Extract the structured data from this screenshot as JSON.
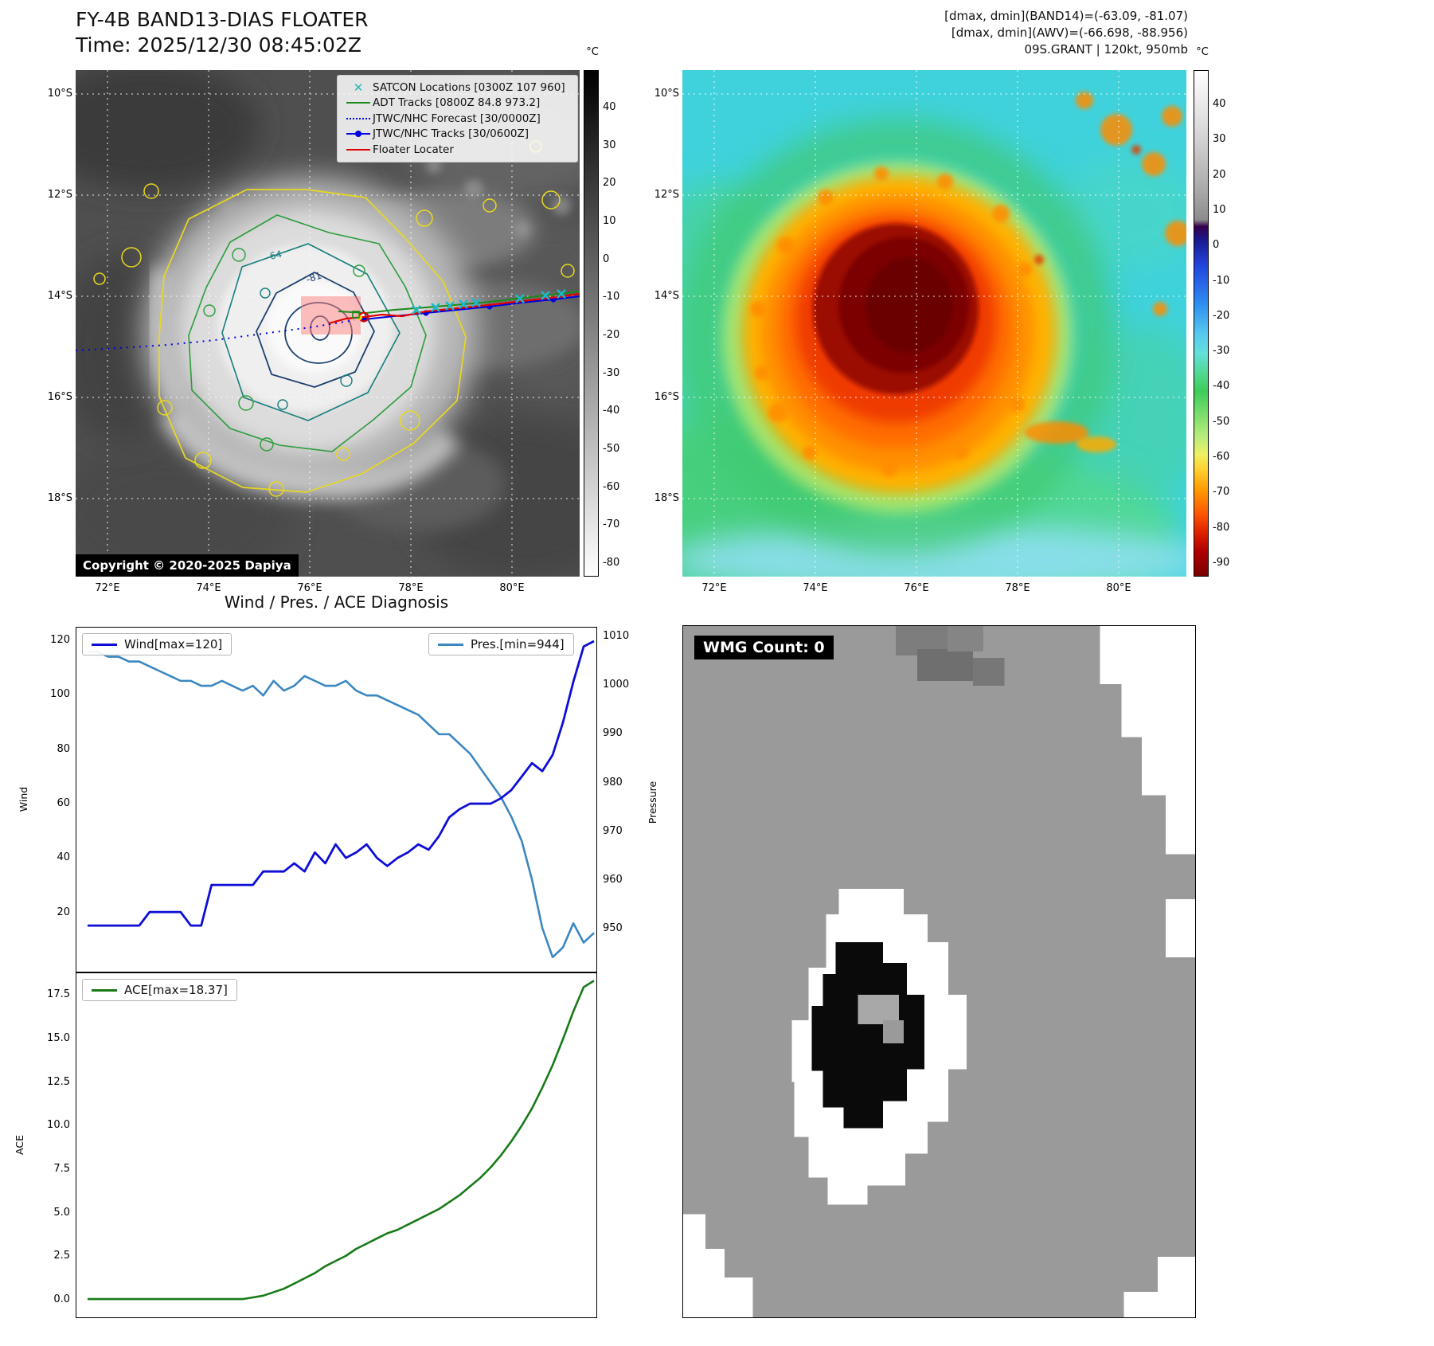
{
  "panel_tl": {
    "title": "FY-4B BAND13-DIAS FLOATER",
    "time_line": "Time: 2025/12/30 08:45:02Z",
    "legend": [
      {
        "label": "SATCON Locations [0300Z 107 960]",
        "marker": "x-marker",
        "color": "#29b6b6"
      },
      {
        "label": "ADT Tracks [0800Z 84.8 973.2]",
        "marker": "solid-line",
        "color": "#1a8a1a"
      },
      {
        "label": "JTWC/NHC Forecast [30/0000Z]",
        "marker": "dotted-line",
        "color": "#0000e0"
      },
      {
        "label": "JTWC/NHC Tracks [30/0600Z]",
        "marker": "line-with-dot",
        "color": "#0000e0"
      },
      {
        "label": "Floater Locater",
        "marker": "solid-line",
        "color": "#e00000"
      }
    ],
    "contour_labels": {
      "outer": "-64",
      "inner": "-81"
    },
    "copyright": "Copyright © 2020-2025 Dapiya",
    "lat_ticks": [
      "10°S",
      "12°S",
      "14°S",
      "16°S",
      "18°S"
    ],
    "lon_ticks": [
      "72°E",
      "74°E",
      "76°E",
      "78°E",
      "80°E"
    ],
    "colorbar": {
      "unit": "°C",
      "ticks": [
        "40",
        "30",
        "20",
        "10",
        "0",
        "-10",
        "-20",
        "-30",
        "-40",
        "-50",
        "-60",
        "-70",
        "-80"
      ]
    }
  },
  "panel_tr": {
    "header_lines": [
      "[dmax, dmin](BAND14)=(-63.09, -81.07)",
      "[dmax, dmin](AWV)=(-66.698, -88.956)",
      "09S.GRANT | 120kt, 950mb"
    ],
    "lat_ticks": [
      "10°S",
      "12°S",
      "14°S",
      "16°S",
      "18°S"
    ],
    "lon_ticks": [
      "72°E",
      "74°E",
      "76°E",
      "78°E",
      "80°E"
    ],
    "colorbar": {
      "unit": "°C",
      "ticks": [
        "40",
        "30",
        "20",
        "10",
        "0",
        "-10",
        "-20",
        "-30",
        "-40",
        "-50",
        "-60",
        "-70",
        "-80",
        "-90"
      ]
    }
  },
  "panel_bl": {
    "title": "Wind / Pres. / ACE Diagnosis",
    "wind_ylabel": "Wind",
    "pressure_ylabel": "Pressure",
    "ace_ylabel": "ACE",
    "wind_legend": "Wind[max=120]",
    "pres_legend": "Pres.[min=944]",
    "ace_legend": "ACE[max=18.37]",
    "wind_ticks": [
      "120",
      "100",
      "80",
      "60",
      "40",
      "20"
    ],
    "pressure_ticks": [
      "1010",
      "1000",
      "990",
      "980",
      "970",
      "960",
      "950"
    ],
    "ace_ticks": [
      "17.5",
      "15.0",
      "12.5",
      "10.0",
      "7.5",
      "5.0",
      "2.5",
      "0.0"
    ]
  },
  "panel_br": {
    "wmg_label": "WMG Count: 0"
  },
  "chart_data": [
    {
      "type": "line",
      "title": "Wind / Pres. / ACE Diagnosis",
      "x_axis": "time (no tick labels shown)",
      "legend_position": "upper left / upper right",
      "series": [
        {
          "name": "Wind[max=120]",
          "color": "#0d0dd6",
          "axis": "left",
          "ylabel": "Wind",
          "ylim": [
            -2,
            125
          ],
          "yticks": [
            20,
            40,
            60,
            80,
            100,
            120
          ],
          "values": [
            15,
            15,
            15,
            15,
            15,
            15,
            20,
            20,
            20,
            20,
            15,
            15,
            30,
            30,
            30,
            30,
            30,
            35,
            35,
            35,
            38,
            35,
            42,
            38,
            45,
            40,
            42,
            45,
            40,
            37,
            40,
            42,
            45,
            43,
            48,
            55,
            58,
            60,
            60,
            60,
            62,
            65,
            70,
            75,
            72,
            78,
            90,
            105,
            118,
            120
          ]
        },
        {
          "name": "Pres.[min=944]",
          "color": "#3a87c2",
          "axis": "right",
          "ylabel": "Pressure",
          "ylim": [
            941,
            1012
          ],
          "yticks": [
            950,
            960,
            970,
            980,
            990,
            1000,
            1010
          ],
          "values": [
            1007,
            1007,
            1006,
            1006,
            1005,
            1005,
            1004,
            1003,
            1002,
            1001,
            1001,
            1000,
            1000,
            1001,
            1000,
            999,
            1000,
            998,
            1001,
            999,
            1000,
            1002,
            1001,
            1000,
            1000,
            1001,
            999,
            998,
            998,
            997,
            996,
            995,
            994,
            992,
            990,
            990,
            988,
            986,
            983,
            980,
            977,
            973,
            968,
            960,
            950,
            944,
            946,
            951,
            947,
            949
          ]
        }
      ]
    },
    {
      "type": "line",
      "legend_position": "upper left",
      "series": [
        {
          "name": "ACE[max=18.37]",
          "color": "#177a17",
          "ylabel": "ACE",
          "ylim": [
            -1.05,
            18.8
          ],
          "yticks": [
            0,
            2.5,
            5,
            7.5,
            10,
            12.5,
            15,
            17.5
          ],
          "values": [
            0,
            0,
            0,
            0,
            0,
            0,
            0,
            0,
            0,
            0,
            0,
            0,
            0,
            0,
            0,
            0,
            0.1,
            0.2,
            0.4,
            0.6,
            0.9,
            1.2,
            1.5,
            1.9,
            2.2,
            2.5,
            2.9,
            3.2,
            3.5,
            3.8,
            4.0,
            4.3,
            4.6,
            4.9,
            5.2,
            5.6,
            6.0,
            6.5,
            7.0,
            7.6,
            8.3,
            9.1,
            10.0,
            11.0,
            12.2,
            13.5,
            15.0,
            16.6,
            18.0,
            18.37
          ]
        }
      ]
    }
  ]
}
